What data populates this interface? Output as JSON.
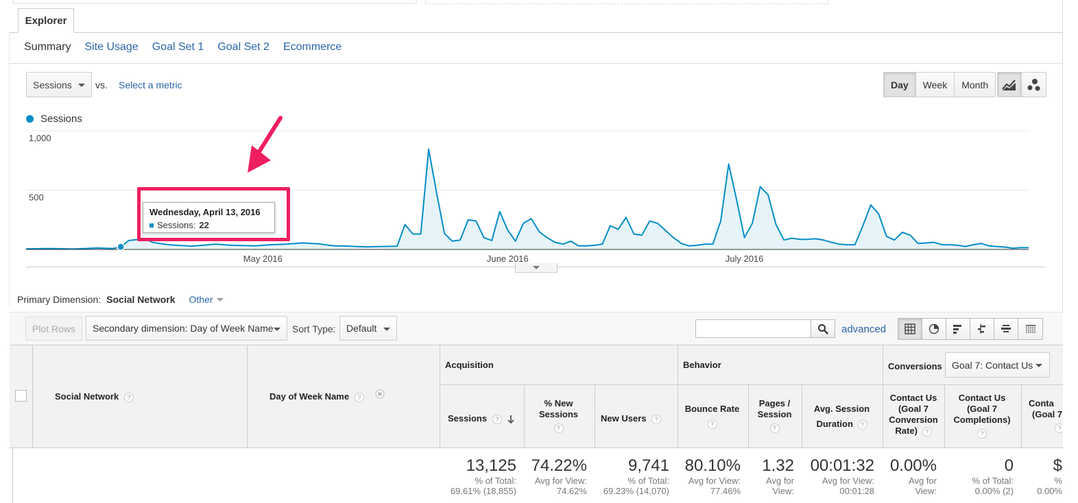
{
  "explorer_tab": "Explorer",
  "subtabs": [
    "Summary",
    "Site Usage",
    "Goal Set 1",
    "Goal Set 2",
    "Ecommerce"
  ],
  "metric_selector": "Sessions",
  "vs_label": "vs.",
  "select_metric": "Select a metric",
  "granularity": [
    "Day",
    "Week",
    "Month"
  ],
  "chart_icons": [
    "line-chart-icon",
    "motion-chart-icon"
  ],
  "colors": {
    "series": "#058dc7",
    "accent_highlight": "#ee1f5f",
    "link": "#2a64a8"
  },
  "chart_data": {
    "type": "area",
    "legend": [
      "Sessions"
    ],
    "legend_placement": "top-left",
    "y_ticks": [
      "1,000",
      "500"
    ],
    "y_tick_values": [
      1000,
      500
    ],
    "ylim": [
      0,
      1000
    ],
    "x_tick_labels": [
      "May 2016",
      "June 2016",
      "July 2016"
    ],
    "x_tick_dates": [
      "2016-05-01",
      "2016-06-01",
      "2016-07-01"
    ],
    "x_start": "2016-04-01",
    "x_end": "2016-08-06",
    "series": [
      {
        "name": "Sessions",
        "x": [
          "2016-04-01",
          "2016-04-04",
          "2016-04-07",
          "2016-04-10",
          "2016-04-12",
          "2016-04-13",
          "2016-04-14",
          "2016-04-16",
          "2016-04-17",
          "2016-04-19",
          "2016-04-22",
          "2016-04-25",
          "2016-04-27",
          "2016-04-30",
          "2016-05-02",
          "2016-05-04",
          "2016-05-06",
          "2016-05-08",
          "2016-05-10",
          "2016-05-12",
          "2016-05-14",
          "2016-05-16",
          "2016-05-18",
          "2016-05-19",
          "2016-05-20",
          "2016-05-21",
          "2016-05-22",
          "2016-05-23",
          "2016-05-24",
          "2016-05-25",
          "2016-05-26",
          "2016-05-27",
          "2016-05-28",
          "2016-05-29",
          "2016-05-30",
          "2016-05-31",
          "2016-06-01",
          "2016-06-02",
          "2016-06-03",
          "2016-06-04",
          "2016-06-05",
          "2016-06-06",
          "2016-06-07",
          "2016-06-08",
          "2016-06-09",
          "2016-06-10",
          "2016-06-11",
          "2016-06-12",
          "2016-06-13",
          "2016-06-14",
          "2016-06-15",
          "2016-06-16",
          "2016-06-17",
          "2016-06-18",
          "2016-06-19",
          "2016-06-20",
          "2016-06-21",
          "2016-06-22",
          "2016-06-23",
          "2016-06-24",
          "2016-06-25",
          "2016-06-26",
          "2016-06-27",
          "2016-06-28",
          "2016-06-29",
          "2016-06-30",
          "2016-07-01",
          "2016-07-02",
          "2016-07-03",
          "2016-07-04",
          "2016-07-05",
          "2016-07-06",
          "2016-07-07",
          "2016-07-08",
          "2016-07-09",
          "2016-07-10",
          "2016-07-11",
          "2016-07-12",
          "2016-07-13",
          "2016-07-14",
          "2016-07-15",
          "2016-07-16",
          "2016-07-17",
          "2016-07-18",
          "2016-07-19",
          "2016-07-20",
          "2016-07-21",
          "2016-07-22",
          "2016-07-23",
          "2016-07-24",
          "2016-07-25",
          "2016-07-26",
          "2016-07-27",
          "2016-07-28",
          "2016-07-29",
          "2016-07-30",
          "2016-07-31",
          "2016-08-01",
          "2016-08-02",
          "2016-08-03",
          "2016-08-04",
          "2016-08-05",
          "2016-08-06"
        ],
        "values": [
          5,
          8,
          4,
          12,
          8,
          22,
          75,
          90,
          60,
          40,
          28,
          45,
          35,
          30,
          40,
          45,
          55,
          48,
          30,
          28,
          22,
          25,
          28,
          210,
          130,
          130,
          845,
          480,
          135,
          70,
          80,
          250,
          240,
          100,
          75,
          320,
          165,
          70,
          220,
          260,
          150,
          100,
          60,
          45,
          70,
          30,
          30,
          35,
          45,
          200,
          170,
          270,
          130,
          120,
          240,
          220,
          160,
          100,
          50,
          30,
          35,
          45,
          45,
          240,
          720,
          420,
          100,
          220,
          530,
          460,
          210,
          80,
          95,
          85,
          85,
          90,
          80,
          60,
          45,
          40,
          40,
          200,
          375,
          300,
          110,
          80,
          145,
          120,
          50,
          55,
          60,
          40,
          40,
          35,
          25,
          40,
          50,
          30,
          25,
          20,
          10,
          15,
          15
        ]
      }
    ],
    "tooltip": {
      "date": "Wednesday, April 13, 2016",
      "label": "Sessions:",
      "value": "22"
    }
  },
  "primary_dimension": {
    "label": "Primary Dimension:",
    "value": "Social Network",
    "other": "Other"
  },
  "toolbar": {
    "plot_rows": "Plot Rows",
    "secondary_dimension": "Secondary dimension: Day of Week Name",
    "sort_type_label": "Sort Type:",
    "sort_type_value": "Default",
    "advanced": "advanced",
    "view_icons": [
      "table-view-icon",
      "pie-view-icon",
      "bar-view-icon",
      "comparison-view-icon",
      "term-cloud-icon",
      "pivot-view-icon"
    ]
  },
  "table": {
    "dim_headers": [
      "Social Network",
      "Day of Week Name"
    ],
    "groups": [
      "Acquisition",
      "Behavior",
      "Conversions"
    ],
    "goal_selector": "Goal 7: Contact Us",
    "columns": [
      {
        "lines": [
          "Sessions"
        ]
      },
      {
        "lines": [
          "% New",
          "Sessions"
        ]
      },
      {
        "lines": [
          "New Users"
        ]
      },
      {
        "lines": [
          "Bounce Rate"
        ]
      },
      {
        "lines": [
          "Pages /",
          "Session"
        ]
      },
      {
        "lines": [
          "Avg. Session",
          "Duration"
        ]
      },
      {
        "lines": [
          "Contact Us",
          "(Goal 7",
          "Conversion",
          "Rate)"
        ]
      },
      {
        "lines": [
          "Contact Us",
          "(Goal 7",
          "Completions)"
        ]
      },
      {
        "lines": [
          "Conta",
          "(Goal 7"
        ]
      }
    ],
    "totals": [
      {
        "value": "13,125",
        "sub": [
          "% of Total:",
          "69.61% (18,855)"
        ]
      },
      {
        "value": "74.22%",
        "sub": [
          "Avg for View:",
          "74.62%"
        ]
      },
      {
        "value": "9,741",
        "sub": [
          "% of Total:",
          "69.23% (14,070)"
        ]
      },
      {
        "value": "80.10%",
        "sub": [
          "Avg for View:",
          "77.46%"
        ]
      },
      {
        "value": "1.32",
        "sub": [
          "Avg for",
          "View:"
        ]
      },
      {
        "value": "00:01:32",
        "sub": [
          "Avg for View:",
          "00:01:28"
        ]
      },
      {
        "value": "0.00%",
        "sub": [
          "Avg for",
          "View:"
        ]
      },
      {
        "value": "0",
        "sub": [
          "% of Total:",
          "0.00% (2)"
        ]
      },
      {
        "value": "$",
        "sub": [
          "%",
          "0.00%"
        ]
      }
    ]
  }
}
